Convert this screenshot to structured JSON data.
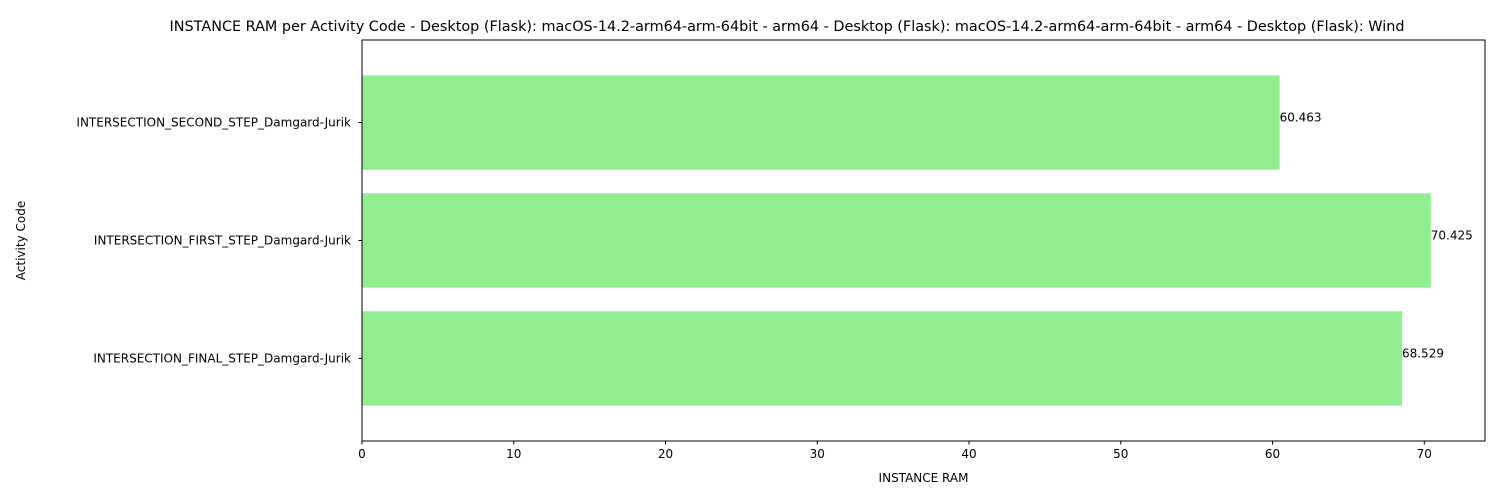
{
  "chart_data": {
    "type": "bar",
    "orientation": "horizontal",
    "title": "INSTANCE RAM per Activity Code - Desktop (Flask): macOS-14.2-arm64-arm-64bit - arm64 - Desktop (Flask): macOS-14.2-arm64-arm-64bit - arm64 - Desktop (Flask): Wind",
    "xlabel": "INSTANCE RAM",
    "ylabel": "Activity Code",
    "categories": [
      "INTERSECTION_SECOND_STEP_Damgard-Jurik",
      "INTERSECTION_FIRST_STEP_Damgard-Jurik",
      "INTERSECTION_FINAL_STEP_Damgard-Jurik"
    ],
    "values": [
      60.463,
      70.425,
      68.529
    ],
    "value_labels": [
      "60.463",
      "70.425",
      "68.529"
    ],
    "xlim": [
      0,
      74
    ],
    "xticks": [
      0,
      10,
      20,
      30,
      40,
      50,
      60,
      70
    ],
    "xtick_labels": [
      "0",
      "10",
      "20",
      "30",
      "40",
      "50",
      "60",
      "70"
    ],
    "grid": false,
    "bar_color": "#90ee90"
  }
}
